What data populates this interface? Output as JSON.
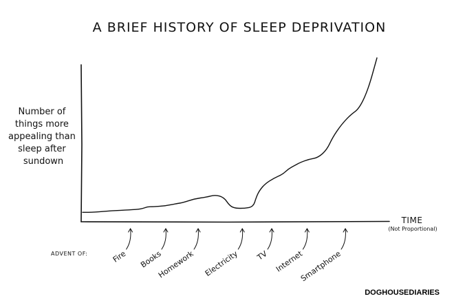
{
  "chart_data": {
    "type": "line",
    "title": "A BRIEF HISTORY OF SLEEP DEPRIVATION",
    "ylabel": [
      "Number of",
      "things more",
      "appealing than",
      "sleep after",
      "sundown"
    ],
    "xlabel": "TIME",
    "xlabel_note": "(Not Proportional)",
    "annotation_prefix": "ADVENT OF:",
    "events": [
      {
        "label": "Fire",
        "x": 0.2
      },
      {
        "label": "Books",
        "x": 0.32
      },
      {
        "label": "Homework",
        "x": 0.43
      },
      {
        "label": "Electricity",
        "x": 0.58
      },
      {
        "label": "TV",
        "x": 0.68
      },
      {
        "label": "Internet",
        "x": 0.8
      },
      {
        "label": "Smartphone",
        "x": 0.93
      }
    ],
    "series": [
      {
        "x": [
          0,
          0.04,
          0.1,
          0.16,
          0.2,
          0.22,
          0.24,
          0.28,
          0.32,
          0.34,
          0.38,
          0.42,
          0.45,
          0.48,
          0.5,
          0.52,
          0.55,
          0.58,
          0.59,
          0.6,
          0.62,
          0.65,
          0.68,
          0.7,
          0.72,
          0.74,
          0.77,
          0.8,
          0.83,
          0.85,
          0.88,
          0.91,
          0.94,
          0.97,
          1.0
        ],
        "y": [
          0.025,
          0.025,
          0.035,
          0.04,
          0.045,
          0.06,
          0.06,
          0.065,
          0.08,
          0.085,
          0.11,
          0.12,
          0.135,
          0.12,
          0.065,
          0.05,
          0.05,
          0.06,
          0.12,
          0.16,
          0.205,
          0.24,
          0.265,
          0.3,
          0.32,
          0.34,
          0.36,
          0.37,
          0.42,
          0.5,
          0.58,
          0.64,
          0.68,
          0.8,
          1.0
        ]
      }
    ],
    "xlim": [
      0,
      1
    ],
    "ylim": [
      0,
      1
    ],
    "grid": false,
    "legend": "none",
    "colors": {
      "line": "#111111",
      "background": "#ffffff"
    }
  },
  "brand": "DOGHOUSEDIARIES"
}
